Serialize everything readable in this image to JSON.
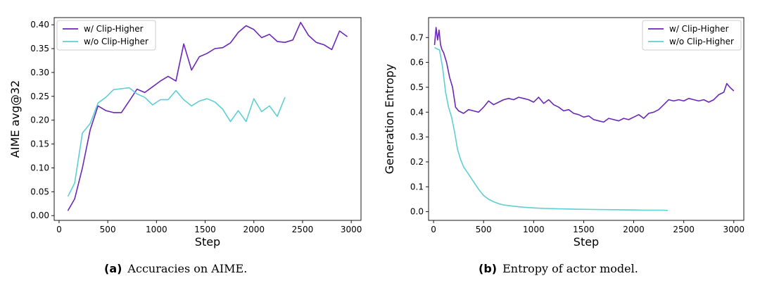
{
  "chart_data": [
    {
      "type": "line",
      "xlabel": "Step",
      "ylabel": "AIME avg@32",
      "xlim": [
        -50,
        3100
      ],
      "ylim": [
        -0.01,
        0.415
      ],
      "xticks": [
        0,
        500,
        1000,
        1500,
        2000,
        2500,
        3000
      ],
      "yticks": [
        0.0,
        0.05,
        0.1,
        0.15,
        0.2,
        0.25,
        0.3,
        0.35,
        0.4
      ],
      "ytick_labels": [
        "0.00",
        "0.05",
        "0.10",
        "0.15",
        "0.20",
        "0.25",
        "0.30",
        "0.35",
        "0.40"
      ],
      "legend": "top-left",
      "series": [
        {
          "name": "w/ Clip-Higher",
          "color": "#6a28b8",
          "x": [
            90,
            160,
            240,
            320,
            400,
            480,
            560,
            640,
            720,
            800,
            880,
            960,
            1040,
            1120,
            1200,
            1280,
            1360,
            1440,
            1520,
            1600,
            1680,
            1760,
            1840,
            1920,
            2000,
            2080,
            2160,
            2240,
            2320,
            2400,
            2480,
            2560,
            2640,
            2720,
            2800,
            2880,
            2960
          ],
          "y": [
            0.01,
            0.035,
            0.1,
            0.18,
            0.23,
            0.22,
            0.216,
            0.216,
            0.24,
            0.265,
            0.258,
            0.27,
            0.282,
            0.292,
            0.282,
            0.36,
            0.305,
            0.333,
            0.34,
            0.35,
            0.352,
            0.362,
            0.384,
            0.398,
            0.39,
            0.373,
            0.38,
            0.365,
            0.363,
            0.368,
            0.405,
            0.378,
            0.363,
            0.358,
            0.348,
            0.387,
            0.375
          ]
        },
        {
          "name": "w/o Clip-Higher",
          "color": "#5ecfd3",
          "x": [
            90,
            160,
            240,
            320,
            400,
            480,
            560,
            640,
            720,
            800,
            880,
            960,
            1040,
            1120,
            1200,
            1280,
            1360,
            1440,
            1520,
            1600,
            1680,
            1760,
            1840,
            1920,
            2000,
            2080,
            2160,
            2240,
            2320
          ],
          "y": [
            0.04,
            0.068,
            0.173,
            0.193,
            0.236,
            0.248,
            0.264,
            0.266,
            0.268,
            0.255,
            0.248,
            0.232,
            0.243,
            0.243,
            0.262,
            0.243,
            0.23,
            0.24,
            0.245,
            0.238,
            0.223,
            0.197,
            0.22,
            0.197,
            0.245,
            0.218,
            0.23,
            0.208,
            0.248
          ]
        }
      ]
    },
    {
      "type": "line",
      "xlabel": "Step",
      "ylabel": "Generation Entropy",
      "xlim": [
        -50,
        3100
      ],
      "ylim": [
        -0.035,
        0.78
      ],
      "xticks": [
        0,
        500,
        1000,
        1500,
        2000,
        2500,
        3000
      ],
      "yticks": [
        0.0,
        0.1,
        0.2,
        0.3,
        0.4,
        0.5,
        0.6,
        0.7
      ],
      "ytick_labels": [
        "0.0",
        "0.1",
        "0.2",
        "0.3",
        "0.4",
        "0.5",
        "0.6",
        "0.7"
      ],
      "legend": "top-right",
      "series": [
        {
          "name": "w/ Clip-Higher",
          "color": "#6a28b8",
          "x": [
            10,
            25,
            40,
            55,
            70,
            85,
            100,
            130,
            160,
            190,
            220,
            250,
            300,
            350,
            400,
            450,
            500,
            550,
            600,
            650,
            700,
            750,
            800,
            850,
            900,
            950,
            1000,
            1050,
            1100,
            1150,
            1200,
            1250,
            1300,
            1350,
            1400,
            1450,
            1500,
            1550,
            1600,
            1650,
            1700,
            1750,
            1800,
            1850,
            1900,
            1950,
            2000,
            2050,
            2100,
            2150,
            2200,
            2250,
            2300,
            2350,
            2400,
            2450,
            2500,
            2550,
            2600,
            2650,
            2700,
            2750,
            2800,
            2850,
            2900,
            2930,
            2960,
            3000
          ],
          "y": [
            0.67,
            0.74,
            0.69,
            0.73,
            0.67,
            0.65,
            0.64,
            0.6,
            0.54,
            0.5,
            0.42,
            0.405,
            0.395,
            0.41,
            0.405,
            0.4,
            0.42,
            0.445,
            0.43,
            0.44,
            0.45,
            0.455,
            0.45,
            0.46,
            0.455,
            0.45,
            0.44,
            0.46,
            0.435,
            0.45,
            0.43,
            0.42,
            0.405,
            0.41,
            0.395,
            0.39,
            0.38,
            0.385,
            0.37,
            0.365,
            0.36,
            0.375,
            0.37,
            0.365,
            0.375,
            0.37,
            0.38,
            0.39,
            0.375,
            0.395,
            0.4,
            0.41,
            0.43,
            0.45,
            0.445,
            0.45,
            0.445,
            0.455,
            0.45,
            0.445,
            0.45,
            0.44,
            0.45,
            0.47,
            0.48,
            0.515,
            0.5,
            0.485
          ]
        },
        {
          "name": "w/o Clip-Higher",
          "color": "#5ecfd3",
          "x": [
            10,
            30,
            60,
            90,
            120,
            150,
            180,
            210,
            240,
            270,
            300,
            350,
            400,
            450,
            500,
            550,
            600,
            650,
            700,
            800,
            900,
            1000,
            1100,
            1200,
            1400,
            1600,
            1800,
            2000,
            2100,
            2200,
            2300,
            2340
          ],
          "y": [
            0.66,
            0.655,
            0.65,
            0.58,
            0.48,
            0.42,
            0.38,
            0.32,
            0.25,
            0.21,
            0.18,
            0.15,
            0.12,
            0.09,
            0.065,
            0.05,
            0.04,
            0.032,
            0.027,
            0.022,
            0.018,
            0.015,
            0.013,
            0.012,
            0.01,
            0.009,
            0.008,
            0.007,
            0.006,
            0.006,
            0.006,
            0.005
          ]
        }
      ]
    }
  ],
  "captions": [
    {
      "label": "(a)",
      "text": "Accuracies on AIME."
    },
    {
      "label": "(b)",
      "text": "Entropy of actor model."
    }
  ]
}
